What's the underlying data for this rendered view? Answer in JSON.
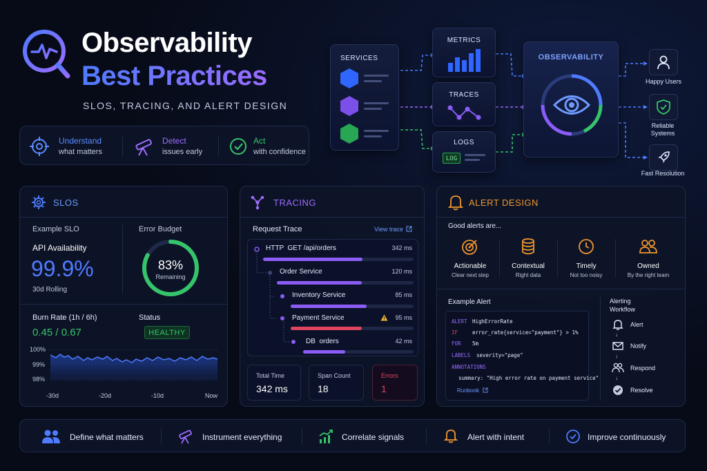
{
  "hero": {
    "title_line1": "Observability",
    "title_line2": "Best Practices",
    "subtitle": "SLOS, TRACING, AND ALERT DESIGN"
  },
  "pillars": [
    {
      "title": "Understand",
      "subtitle": "what matters",
      "icon": "target-icon",
      "color": "#5b8cff"
    },
    {
      "title": "Detect",
      "subtitle": "issues early",
      "icon": "telescope-icon",
      "color": "#9b6cff"
    },
    {
      "title": "Act",
      "subtitle": "with confidence",
      "icon": "check-circle-icon",
      "color": "#36c46b"
    }
  ],
  "diagram": {
    "services_label": "SERVICES",
    "metrics_label": "METRICS",
    "traces_label": "TRACES",
    "logs_label": "LOGS",
    "log_badge": "LOG",
    "observability_label": "OBSERVABILITY",
    "outcomes": [
      {
        "label": "Happy Users",
        "icon": "user-icon"
      },
      {
        "label": "Reliable Systems",
        "icon": "shield-check-icon"
      },
      {
        "label": "Fast Resolution",
        "icon": "rocket-icon"
      }
    ]
  },
  "slos": {
    "title": "SLOS",
    "example_label": "Example SLO",
    "slo_name": "API Availability",
    "slo_value": "99.9%",
    "slo_window": "30d Rolling",
    "error_budget_label": "Error Budget",
    "error_budget_value": "83%",
    "error_budget_caption": "Remaining",
    "error_budget_fraction": 0.83,
    "burn_rate_label": "Burn Rate (1h / 6h)",
    "burn_rate_value": "0.45 / 0.67",
    "status_label": "Status",
    "status_value": "HEALTHY",
    "chart_y_ticks": [
      "100%",
      "99%",
      "98%"
    ],
    "chart_x_ticks": [
      "-30d",
      "-20d",
      "-10d",
      "Now"
    ]
  },
  "tracing": {
    "title": "TRACING",
    "request_trace_label": "Request Trace",
    "view_trace_label": "View trace",
    "spans": [
      {
        "name": "HTTP  GET /api/orders",
        "duration": "342 ms",
        "depth": 0,
        "color": "#8b5cf6",
        "warn": false
      },
      {
        "name": "Order Service",
        "duration": "120 ms",
        "depth": 1,
        "color": "#8b5cf6",
        "warn": false
      },
      {
        "name": "Inventory Service",
        "duration": "85 ms",
        "depth": 2,
        "color": "#8b5cf6",
        "warn": false
      },
      {
        "name": "Payment Service",
        "duration": "95 ms",
        "depth": 2,
        "color": "#e0455e",
        "warn": true
      },
      {
        "name": "DB  orders",
        "duration": "42 ms",
        "depth": 3,
        "color": "#8b5cf6",
        "warn": false
      }
    ],
    "stats": [
      {
        "label": "Total Time",
        "value": "342 ms"
      },
      {
        "label": "Span Count",
        "value": "18"
      },
      {
        "label": "Errors",
        "value": "1"
      }
    ]
  },
  "alerts": {
    "title": "ALERT DESIGN",
    "intro": "Good alerts are...",
    "qualities": [
      {
        "title": "Actionable",
        "subtitle": "Clear next step",
        "icon": "target-icon"
      },
      {
        "title": "Contextual",
        "subtitle": "Right data",
        "icon": "database-icon"
      },
      {
        "title": "Timely",
        "subtitle": "Not too noisy",
        "icon": "clock-icon"
      },
      {
        "title": "Owned",
        "subtitle": "By the right team",
        "icon": "users-icon"
      }
    ],
    "example_label": "Example Alert",
    "code_lines": [
      {
        "key": "ALERT",
        "value": "HighErrorRate"
      },
      {
        "key": "IF",
        "value": "error_rate{service=\"payment\"} > 1%"
      },
      {
        "key": "FOR",
        "value": "5m"
      },
      {
        "key": "LABELS",
        "value": "severity=\"page\""
      },
      {
        "key": "ANNOTATIONS",
        "value": ""
      },
      {
        "key": "",
        "value": "summary: \"High error rate on payment service\""
      }
    ],
    "runbook_label": "Runbook",
    "workflow_title": "Alerting Workflow",
    "workflow_steps": [
      {
        "label": "Alert",
        "icon": "bell-icon"
      },
      {
        "label": "Notify",
        "icon": "mail-icon"
      },
      {
        "label": "Respond",
        "icon": "people-icon"
      },
      {
        "label": "Resolve",
        "icon": "check-circle-icon"
      }
    ]
  },
  "footer": [
    {
      "label": "Define what matters",
      "icon": "users-icon",
      "color": "#4f7bff"
    },
    {
      "label": "Instrument everything",
      "icon": "telescope-icon",
      "color": "#9b6cff"
    },
    {
      "label": "Correlate signals",
      "icon": "chart-up-icon",
      "color": "#36c46b"
    },
    {
      "label": "Alert with intent",
      "icon": "bell-icon",
      "color": "#f0962e"
    },
    {
      "label": "Improve continuously",
      "icon": "check-circle-icon",
      "color": "#4f7bff"
    }
  ]
}
